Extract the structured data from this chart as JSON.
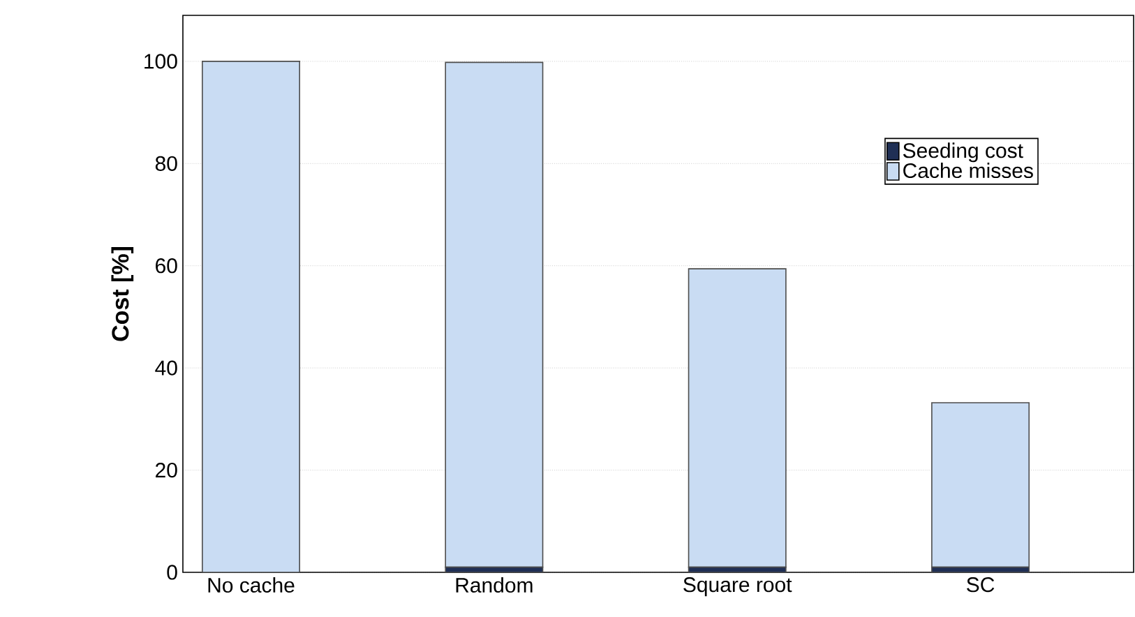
{
  "chart_data": {
    "type": "bar",
    "stacked": true,
    "ylabel": "Cost [%]",
    "categories": [
      "No cache",
      "Random",
      "Square root",
      "SC"
    ],
    "series": [
      {
        "name": "Seeding cost",
        "color": "#1f2f55",
        "values": [
          0,
          1,
          1,
          1
        ]
      },
      {
        "name": "Cache misses",
        "color": "#c9dcf3",
        "values": [
          100,
          98.8,
          58.4,
          32.2
        ]
      }
    ],
    "ylim": [
      0,
      109
    ],
    "yticks": [
      0,
      20,
      40,
      60,
      80,
      100
    ],
    "grid": "y",
    "legend": "top right"
  }
}
